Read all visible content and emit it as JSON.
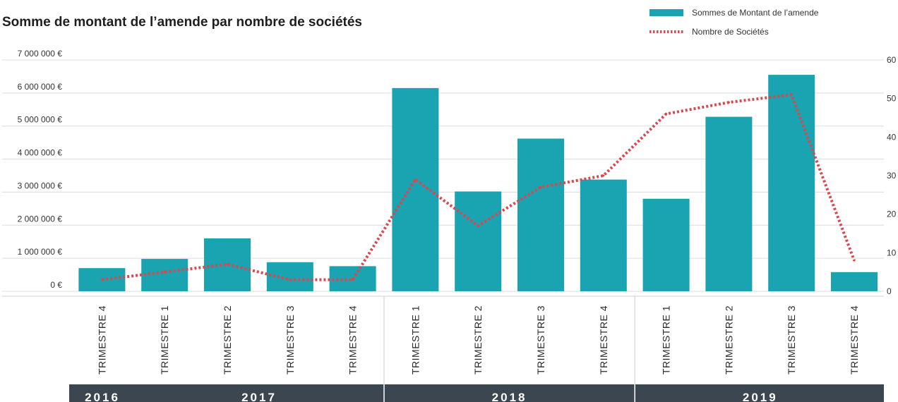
{
  "chart_data": {
    "type": "bar",
    "title": "Somme de montant de l’amende par nombre de sociétés",
    "categories": [
      "TRIMESTRE 4",
      "TRIMESTRE 1",
      "TRIMESTRE 2",
      "TRIMESTRE 3",
      "TRIMESTRE 4",
      "TRIMESTRE 1",
      "TRIMESTRE 2",
      "TRIMESTRE 3",
      "TRIMESTRE 4",
      "TRIMESTRE 1",
      "TRIMESTRE 2",
      "TRIMESTRE 3",
      "TRIMESTRE 4"
    ],
    "year_groups": [
      {
        "label": "2016",
        "start": 0,
        "end": 0
      },
      {
        "label": "2017",
        "start": 1,
        "end": 4
      },
      {
        "label": "2018",
        "start": 5,
        "end": 8
      },
      {
        "label": "2019",
        "start": 9,
        "end": 12
      }
    ],
    "series": [
      {
        "name": "Sommes de Montant de l’amende",
        "type": "bar",
        "axis": "left",
        "color": "#1aa3b0",
        "values": [
          700000,
          980000,
          1600000,
          880000,
          760000,
          6150000,
          3020000,
          4620000,
          3380000,
          2800000,
          5280000,
          6550000,
          580000
        ]
      },
      {
        "name": "Nombre de Sociétés",
        "type": "line",
        "style": "dotted",
        "axis": "right",
        "color": "#d9474f",
        "values": [
          3,
          5,
          7,
          3,
          3,
          29,
          17,
          27,
          30,
          46,
          49,
          51,
          8
        ]
      }
    ],
    "y_left": {
      "min": 0,
      "max": 7000000,
      "ticks": [
        0,
        1000000,
        2000000,
        3000000,
        4000000,
        5000000,
        6000000,
        7000000
      ],
      "tick_labels": [
        "0 €",
        "1 000 000 €",
        "2 000 000 €",
        "3 000 000 €",
        "4 000 000 €",
        "5 000 000 €",
        "6 000 000 €",
        "7 000 000 €"
      ]
    },
    "y_right": {
      "min": 0,
      "max": 60,
      "ticks": [
        0,
        10,
        20,
        30,
        40,
        50,
        60
      ],
      "tick_labels": [
        "0",
        "10",
        "20",
        "30",
        "40",
        "50",
        "60"
      ]
    },
    "grid": true,
    "legend_position": "top-right",
    "colors": {
      "bar": "#1aa3b0",
      "line": "#d9474f",
      "year_band": "#3b4650",
      "grid": "#dcdcdc"
    }
  }
}
